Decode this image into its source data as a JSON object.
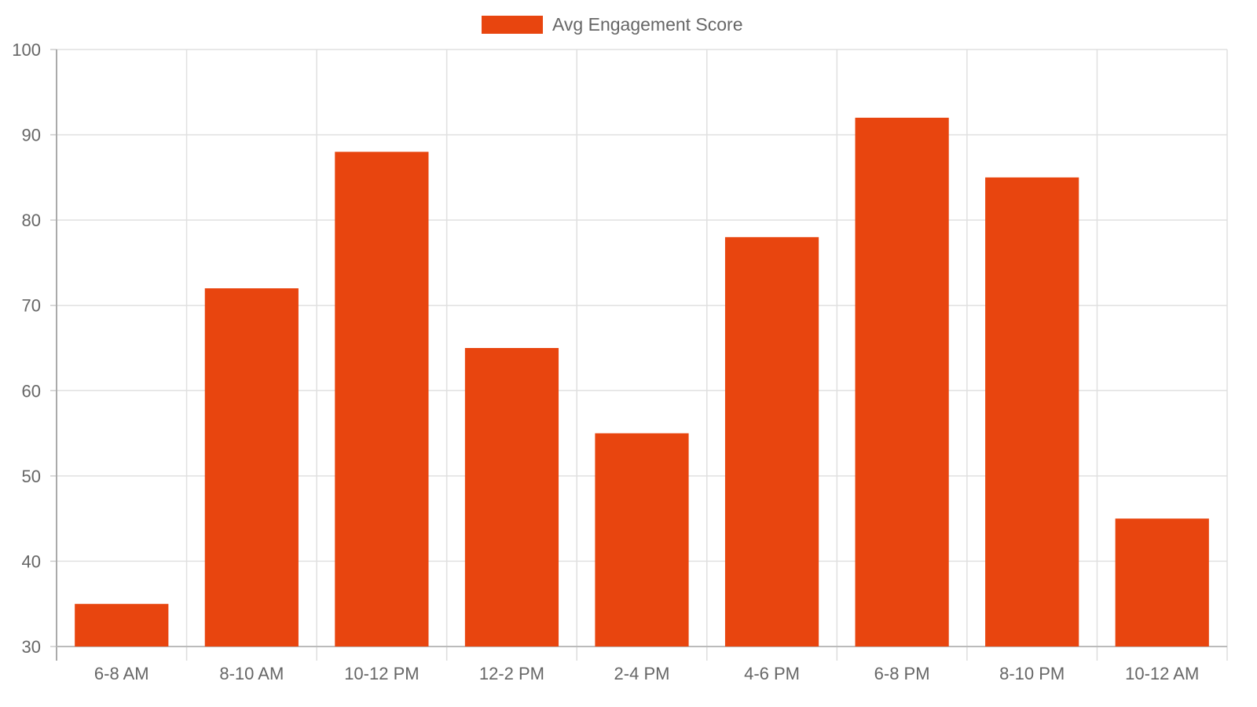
{
  "chart_data": {
    "type": "bar",
    "categories": [
      "6-8 AM",
      "8-10 AM",
      "10-12 PM",
      "12-2 PM",
      "2-4 PM",
      "4-6 PM",
      "6-8 PM",
      "8-10 PM",
      "10-12 AM"
    ],
    "series": [
      {
        "name": "Avg Engagement Score",
        "values": [
          35,
          72,
          88,
          65,
          55,
          78,
          92,
          85,
          45
        ],
        "color": "#e8450f"
      }
    ],
    "title": "",
    "xlabel": "",
    "ylabel": "",
    "ylim": [
      30,
      100
    ],
    "yticks": [
      30,
      40,
      50,
      60,
      70,
      80,
      90,
      100
    ],
    "grid": true,
    "legend_position": "top-center"
  }
}
